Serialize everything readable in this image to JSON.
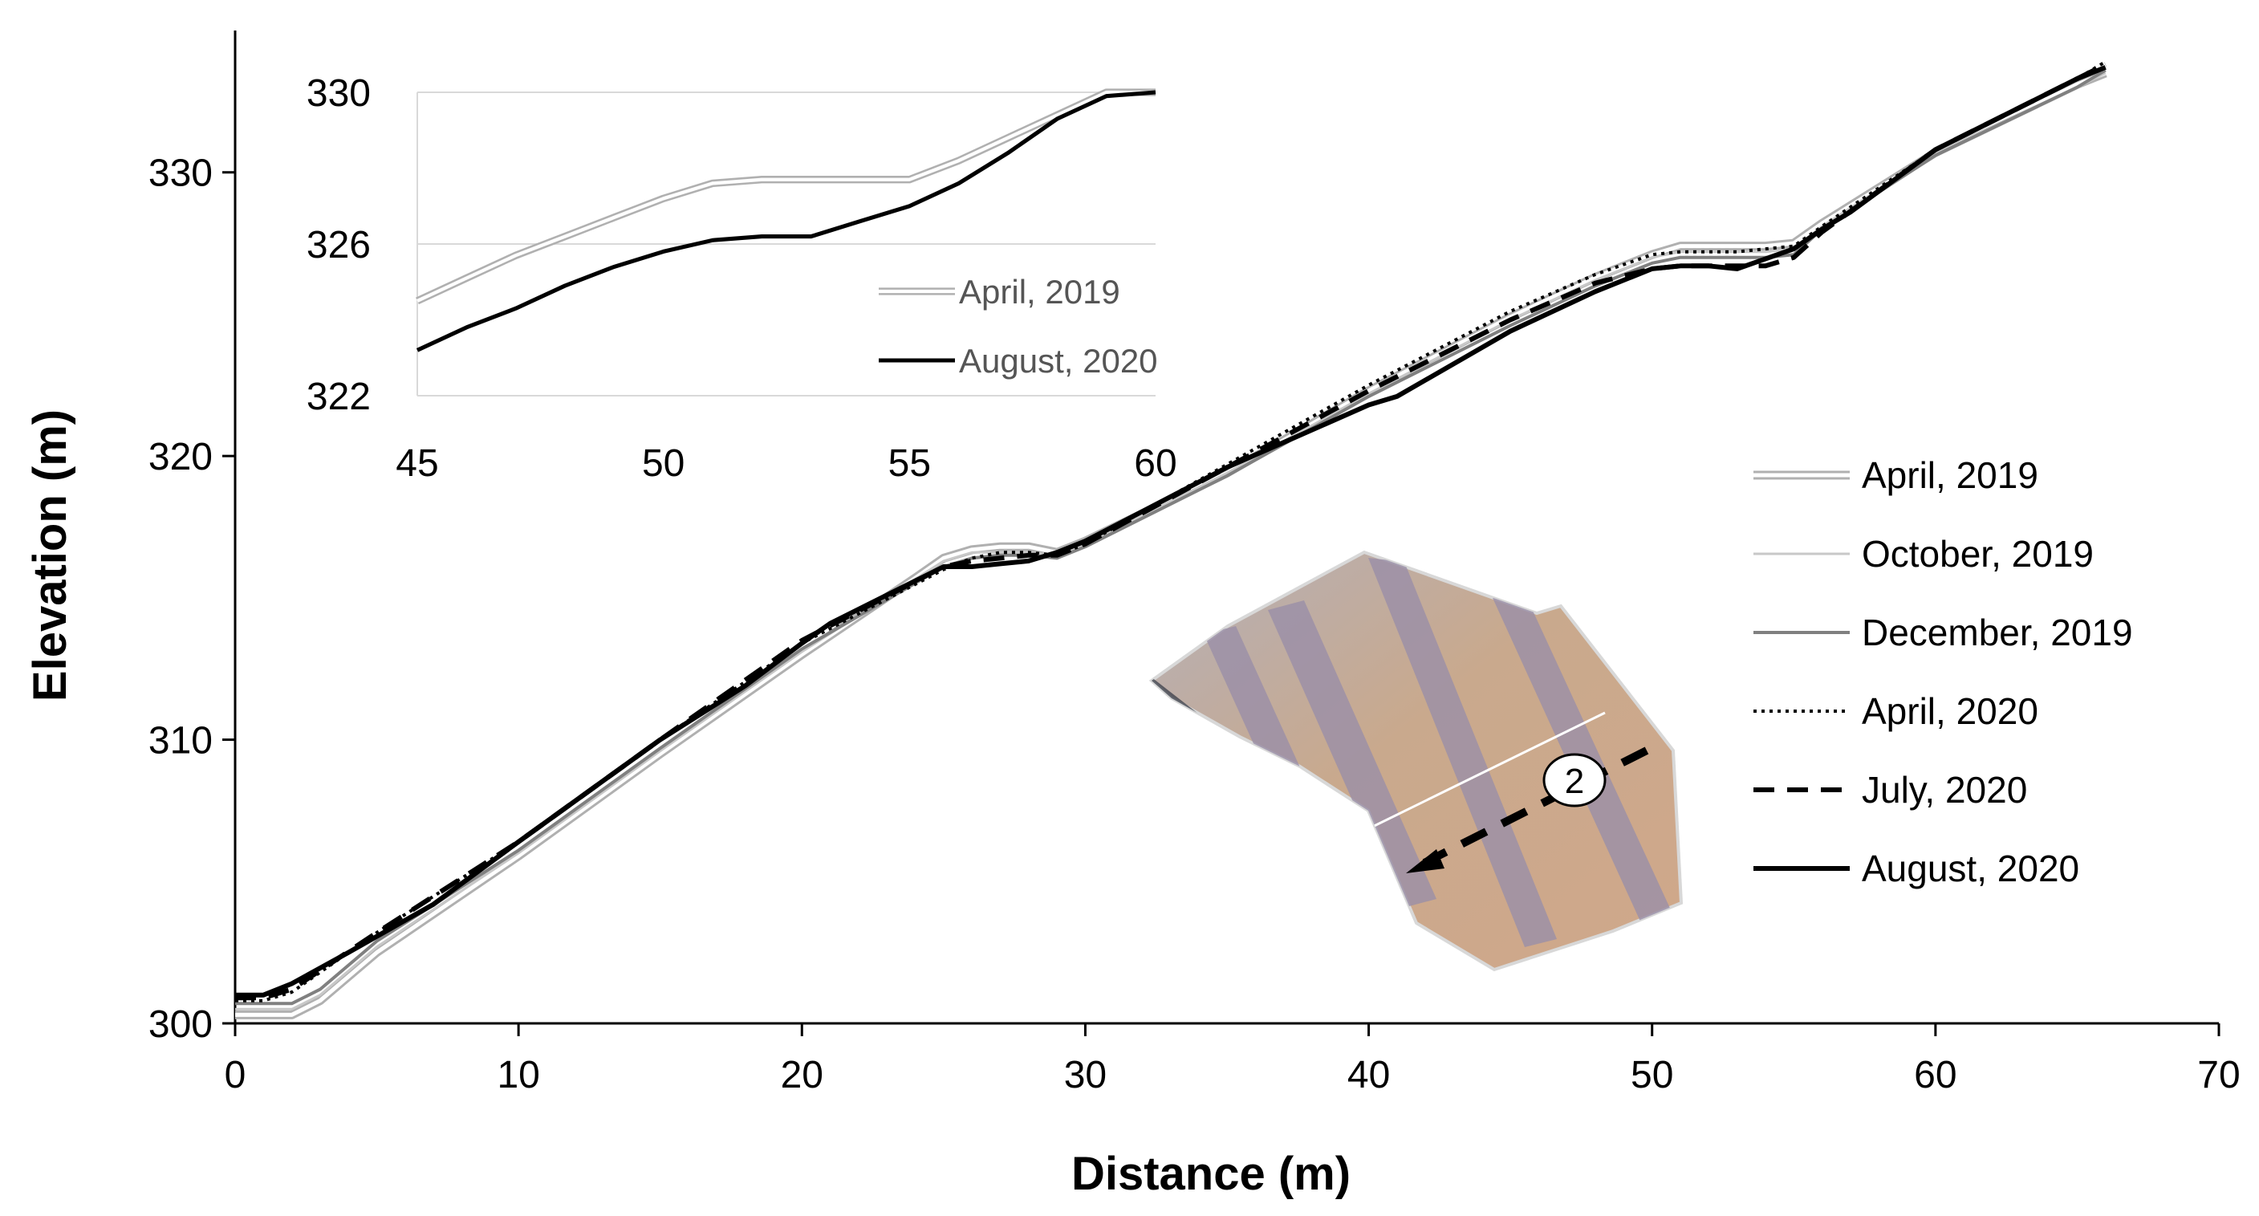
{
  "chart_data": [
    {
      "type": "line",
      "title": "",
      "xlabel": "Distance (m)",
      "ylabel": "Elevation (m)",
      "xlim": [
        0,
        70
      ],
      "ylim": [
        300,
        335
      ],
      "xticks": [
        0,
        10,
        20,
        30,
        40,
        50,
        60,
        70
      ],
      "yticks": [
        300,
        310,
        320,
        330
      ],
      "grid": false,
      "legend_position": "right",
      "series": [
        {
          "name": "April, 2019",
          "style": "double",
          "color": "#b0b0b0",
          "x": [
            0,
            2,
            3,
            5,
            10,
            15,
            20,
            24,
            25,
            26,
            27,
            28,
            29,
            30,
            35,
            40,
            45,
            48,
            50,
            51,
            52,
            53,
            54,
            55,
            56,
            60,
            65,
            66
          ],
          "y": [
            300.3,
            300.3,
            300.8,
            302.5,
            305.9,
            309.5,
            313.0,
            315.7,
            316.4,
            316.7,
            316.8,
            316.8,
            316.6,
            317.0,
            319.4,
            322.3,
            324.9,
            326.3,
            327.1,
            327.4,
            327.4,
            327.4,
            327.4,
            327.5,
            328.2,
            330.7,
            333.1,
            333.5
          ]
        },
        {
          "name": "October, 2019",
          "style": "thin",
          "color": "#c8c8c8",
          "x": [
            0,
            2,
            3,
            5,
            10,
            15,
            20,
            25,
            26,
            27,
            28,
            29,
            30,
            35,
            40,
            45,
            48,
            50,
            51,
            52,
            53,
            54,
            55,
            56,
            60,
            65,
            66
          ],
          "y": [
            300.5,
            300.5,
            301.0,
            302.7,
            306.0,
            309.6,
            313.1,
            316.3,
            316.6,
            316.6,
            316.6,
            316.5,
            316.9,
            319.4,
            322.2,
            324.8,
            326.2,
            327.0,
            327.2,
            327.2,
            327.2,
            327.2,
            327.3,
            328.1,
            330.7,
            333.0,
            333.5
          ]
        },
        {
          "name": "December, 2019",
          "style": "solid",
          "color": "#808080",
          "x": [
            0,
            2,
            3,
            5,
            10,
            15,
            20,
            25,
            26,
            27,
            28,
            29,
            30,
            35,
            40,
            45,
            48,
            50,
            51,
            52,
            53,
            54,
            55,
            56,
            60,
            65,
            66
          ],
          "y": [
            300.7,
            300.7,
            301.2,
            302.9,
            306.1,
            309.7,
            313.2,
            316.1,
            316.4,
            316.5,
            316.5,
            316.4,
            316.8,
            319.3,
            322.1,
            324.6,
            326.0,
            326.8,
            327.0,
            327.0,
            327.0,
            327.0,
            327.1,
            328.0,
            330.6,
            333.0,
            333.6
          ]
        },
        {
          "name": "April, 2020",
          "style": "dotted",
          "color": "#000000",
          "x": [
            0,
            1,
            2,
            5,
            10,
            15,
            20,
            25,
            26,
            27,
            28,
            29,
            30,
            35,
            40,
            45,
            48,
            50,
            51,
            52,
            53,
            54,
            55,
            56,
            60,
            65,
            66
          ],
          "y": [
            300.8,
            300.8,
            301.1,
            303.2,
            306.4,
            310.0,
            313.4,
            316.0,
            316.4,
            316.6,
            316.6,
            316.5,
            316.9,
            319.7,
            322.5,
            325.1,
            326.4,
            327.1,
            327.2,
            327.2,
            327.2,
            327.3,
            327.4,
            328.1,
            330.8,
            333.3,
            333.9
          ]
        },
        {
          "name": "July, 2020",
          "style": "dashed",
          "color": "#000000",
          "x": [
            0,
            1,
            2,
            5,
            10,
            15,
            20,
            25,
            26,
            27,
            28,
            29,
            30,
            35,
            40,
            45,
            48,
            50,
            51,
            52,
            53,
            54,
            55,
            56,
            60,
            65,
            66
          ],
          "y": [
            300.9,
            300.9,
            301.2,
            303.2,
            306.4,
            310.0,
            313.5,
            316.1,
            316.3,
            316.4,
            316.5,
            316.5,
            316.9,
            319.6,
            322.3,
            324.8,
            326.1,
            326.6,
            326.7,
            326.7,
            326.7,
            326.7,
            327.0,
            327.9,
            330.8,
            333.3,
            333.8
          ]
        },
        {
          "name": "August, 2020",
          "style": "solid",
          "color": "#000000",
          "x": [
            0,
            1,
            2,
            4,
            7,
            10,
            15,
            18,
            20,
            21,
            24,
            25,
            26,
            27,
            28,
            29,
            30,
            35,
            40,
            41,
            45,
            48,
            50,
            51,
            52,
            53,
            55,
            56,
            57,
            60,
            65,
            66
          ],
          "y": [
            301.0,
            301.0,
            301.4,
            302.5,
            304.2,
            306.4,
            310.0,
            311.9,
            313.4,
            314.1,
            315.6,
            316.1,
            316.1,
            316.2,
            316.3,
            316.6,
            317.0,
            319.6,
            321.8,
            322.1,
            324.4,
            325.8,
            326.6,
            326.7,
            326.7,
            326.6,
            327.3,
            328.0,
            328.6,
            330.8,
            333.3,
            333.7
          ]
        }
      ]
    },
    {
      "type": "line",
      "title": "",
      "xlabel": "",
      "ylabel": "",
      "xlim": [
        45,
        60
      ],
      "ylim": [
        322,
        330
      ],
      "xticks": [
        45,
        50,
        55,
        60
      ],
      "yticks": [
        322,
        326,
        330
      ],
      "grid": true,
      "legend_position": "bottom-right",
      "series": [
        {
          "name": "April, 2019",
          "style": "double",
          "color": "#b0b0b0",
          "x": [
            45,
            46,
            47,
            48,
            49,
            50,
            51,
            52,
            53,
            54,
            55,
            56,
            57,
            58,
            59,
            60
          ],
          "y": [
            324.5,
            325.1,
            325.7,
            326.2,
            326.7,
            327.2,
            327.6,
            327.7,
            327.7,
            327.7,
            327.7,
            328.2,
            328.8,
            329.4,
            330.0,
            330.0
          ]
        },
        {
          "name": "August, 2020",
          "style": "solid",
          "color": "#000000",
          "x": [
            45,
            46,
            47,
            48,
            49,
            50,
            51,
            52,
            53,
            54,
            55,
            56,
            57,
            58,
            59,
            60
          ],
          "y": [
            323.2,
            323.8,
            324.3,
            324.9,
            325.4,
            325.8,
            326.1,
            326.2,
            326.2,
            326.6,
            327.0,
            327.6,
            328.4,
            329.3,
            329.9,
            330.0
          ]
        }
      ]
    }
  ],
  "photo": {
    "marker_label": "2",
    "shape": "site-orthophoto",
    "colors": [
      "#c9a98d",
      "#9a8fa8",
      "#3a3e48"
    ]
  }
}
